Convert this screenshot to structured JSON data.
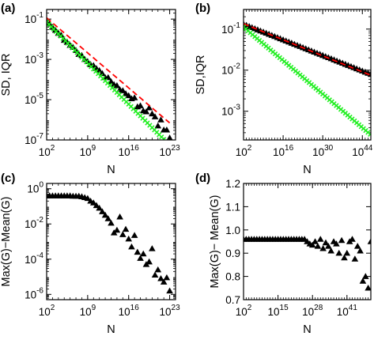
{
  "chart_data": [
    {
      "panel": "(a)",
      "type": "scatter",
      "xlabel": "N",
      "ylabel": "SD, IQR",
      "xscale": "log",
      "yscale": "log",
      "xlim": [
        100.0,
        1e+24
      ],
      "ylim": [
        1e-07,
        0.3
      ],
      "xticks": [
        {
          "v": 100,
          "b": "10",
          "e": "2"
        },
        {
          "v": 1000000000.0,
          "b": "10",
          "e": "9"
        },
        {
          "v": 1e+16,
          "b": "10",
          "e": "16"
        },
        {
          "v": 1e+23,
          "b": "10",
          "e": "23"
        }
      ],
      "yticks": [
        {
          "v": 0.1,
          "b": "10",
          "e": "-1"
        },
        {
          "v": 0.001,
          "b": "10",
          "e": "-3"
        },
        {
          "v": 1e-05,
          "b": "10",
          "e": "-5"
        },
        {
          "v": 1e-07,
          "b": "10",
          "e": "-7"
        }
      ],
      "series": [
        {
          "kind": "markers",
          "marker": "triangle",
          "color": "#000000",
          "x_start_exp": 2,
          "x_step_exp": 0.5,
          "y_log10": [
            -1.17,
            -1.24,
            -1.4,
            -1.55,
            -1.7,
            -1.8,
            -2.05,
            -2.15,
            -2.3,
            -2.4,
            -2.55,
            -2.75,
            -2.8,
            -3,
            -3.1,
            -3.25,
            -3.3,
            -3.45,
            -3.55,
            -3.7,
            -3.9,
            -3.9,
            -4.1,
            -4.25,
            -4.3,
            -4.5,
            -4.55,
            -4.7,
            -4.8,
            -4.95,
            -4.9,
            -5.35,
            -5.3,
            -5.55,
            -5.6,
            -5.4,
            -5.7,
            -5.85,
            -6.3,
            -6,
            -6.5,
            -6.5,
            -6.9
          ]
        },
        {
          "kind": "line",
          "style": "dashed",
          "color": "#ff0000",
          "x": [
            100,
            1e+23
          ],
          "y": [
            0.115,
            7e-07
          ]
        },
        {
          "kind": "markers",
          "marker": "x",
          "color": "#22ee22",
          "x_start_exp": 2,
          "x_step_exp": 0.4,
          "y_log10_start": -1.15,
          "y_log10_slope": -0.291
        }
      ]
    },
    {
      "panel": "(b)",
      "type": "scatter",
      "xlabel": "N",
      "ylabel": "SD,IQR",
      "xscale": "log",
      "yscale": "log",
      "xlim": [
        100.0,
        1e+47
      ],
      "ylim": [
        0.0002,
        0.3
      ],
      "xticks": [
        {
          "v": 100,
          "b": "10",
          "e": "2"
        },
        {
          "v": 1e+16,
          "b": "10",
          "e": "16"
        },
        {
          "v": 1e+30,
          "b": "10",
          "e": "30"
        },
        {
          "v": 1e+44,
          "b": "10",
          "e": "44"
        }
      ],
      "yticks": [
        {
          "v": 0.1,
          "b": "10",
          "e": "-1"
        },
        {
          "v": 0.01,
          "b": "10",
          "e": "-2"
        },
        {
          "v": 0.001,
          "b": "10",
          "e": "-3"
        }
      ],
      "series": [
        {
          "kind": "markers",
          "marker": "triangle",
          "color": "#000000",
          "x_start_exp": 2,
          "x_step_exp": 1,
          "y_log10_start": -0.88,
          "y_log10_slope": -0.0271
        },
        {
          "kind": "line",
          "style": "dashed",
          "color": "#ff0000",
          "x": [
            100,
            1e+47
          ],
          "y": [
            0.135,
            0.0075
          ]
        },
        {
          "kind": "markers",
          "marker": "x",
          "color": "#22ee22",
          "x_start_exp": 2,
          "x_step_exp": 0.8,
          "y_log10_start": -0.95,
          "y_log10_slope": -0.0583
        }
      ]
    },
    {
      "panel": "(c)",
      "type": "scatter",
      "xlabel": "N",
      "ylabel": "Max(G)−Mean(G)",
      "xscale": "log",
      "yscale": "log",
      "xlim": [
        100.0,
        1e+24
      ],
      "ylim": [
        5e-07,
        2
      ],
      "xticks": [
        {
          "v": 100,
          "b": "10",
          "e": "2"
        },
        {
          "v": 1000000000.0,
          "b": "10",
          "e": "9"
        },
        {
          "v": 1e+16,
          "b": "10",
          "e": "16"
        },
        {
          "v": 1e+23,
          "b": "10",
          "e": "23"
        }
      ],
      "yticks": [
        {
          "v": 1,
          "b": "10",
          "e": "0"
        },
        {
          "v": 0.01,
          "b": "10",
          "e": "-2"
        },
        {
          "v": 0.0001,
          "b": "10",
          "e": "-4"
        },
        {
          "v": 1e-06,
          "b": "10",
          "e": "-6"
        }
      ],
      "series": [
        {
          "kind": "markers",
          "marker": "triangle",
          "color": "#000000",
          "x_start_exp": 2,
          "x_step_exp": 0.5,
          "y_log10": [
            -0.4,
            -0.4,
            -0.4,
            -0.4,
            -0.4,
            -0.4,
            -0.4,
            -0.4,
            -0.4,
            -0.42,
            -0.42,
            -0.42,
            -0.45,
            -0.5,
            -0.55,
            -0.7,
            -0.8,
            -0.95,
            -1.1,
            -1.3,
            -1.5,
            -1.7,
            -1.95,
            -2.5,
            -2.35,
            -1.6,
            -2.6,
            -2.3,
            -2.85,
            -3.3,
            -2.65,
            -3.6,
            -3.95,
            -3.7,
            -4.3,
            -4.15,
            -3.4,
            -4.9,
            -4.6,
            -5.1,
            -5.3,
            -5.05,
            -5.8
          ]
        }
      ]
    },
    {
      "panel": "(d)",
      "type": "scatter",
      "xlabel": "N",
      "ylabel": "Max(G)− Mean(G)",
      "xscale": "log",
      "yscale": "linear",
      "xlim": [
        100.0,
        1e+50
      ],
      "ylim": [
        0.7,
        1.2
      ],
      "xticks": [
        {
          "v": 100,
          "b": "10",
          "e": "2"
        },
        {
          "v": 1000000000000000.0,
          "b": "10",
          "e": "15"
        },
        {
          "v": 1e+28,
          "b": "10",
          "e": "28"
        },
        {
          "v": 1e+41,
          "b": "10",
          "e": "41"
        }
      ],
      "yticks": [
        {
          "v": 0.7,
          "t": "0.7"
        },
        {
          "v": 0.8,
          "t": "0.8"
        },
        {
          "v": 0.9,
          "t": "0.9"
        },
        {
          "v": 1.0,
          "t": "1.0"
        },
        {
          "v": 1.1,
          "t": "1.1"
        },
        {
          "v": 1.2,
          "t": "1.2"
        }
      ],
      "series": [
        {
          "kind": "markers",
          "marker": "triangle",
          "color": "#000000",
          "x_start_exp": 2,
          "x_step_exp": 1,
          "y": [
            0.96,
            0.96,
            0.96,
            0.96,
            0.96,
            0.96,
            0.96,
            0.96,
            0.96,
            0.96,
            0.96,
            0.96,
            0.96,
            0.96,
            0.96,
            0.96,
            0.96,
            0.96,
            0.96,
            0.96,
            0.96,
            0.96,
            0.96,
            0.96,
            0.95,
            0.94,
            0.935,
            0.95,
            0.93,
            0.96,
            0.92,
            0.945,
            0.93,
            0.91,
            0.95,
            0.94,
            0.9,
            0.955,
            0.88,
            0.9,
            0.95,
            0.96,
            0.875,
            0.93,
            0.91,
            0.78,
            0.8,
            0.75,
            0.95
          ]
        }
      ]
    }
  ]
}
